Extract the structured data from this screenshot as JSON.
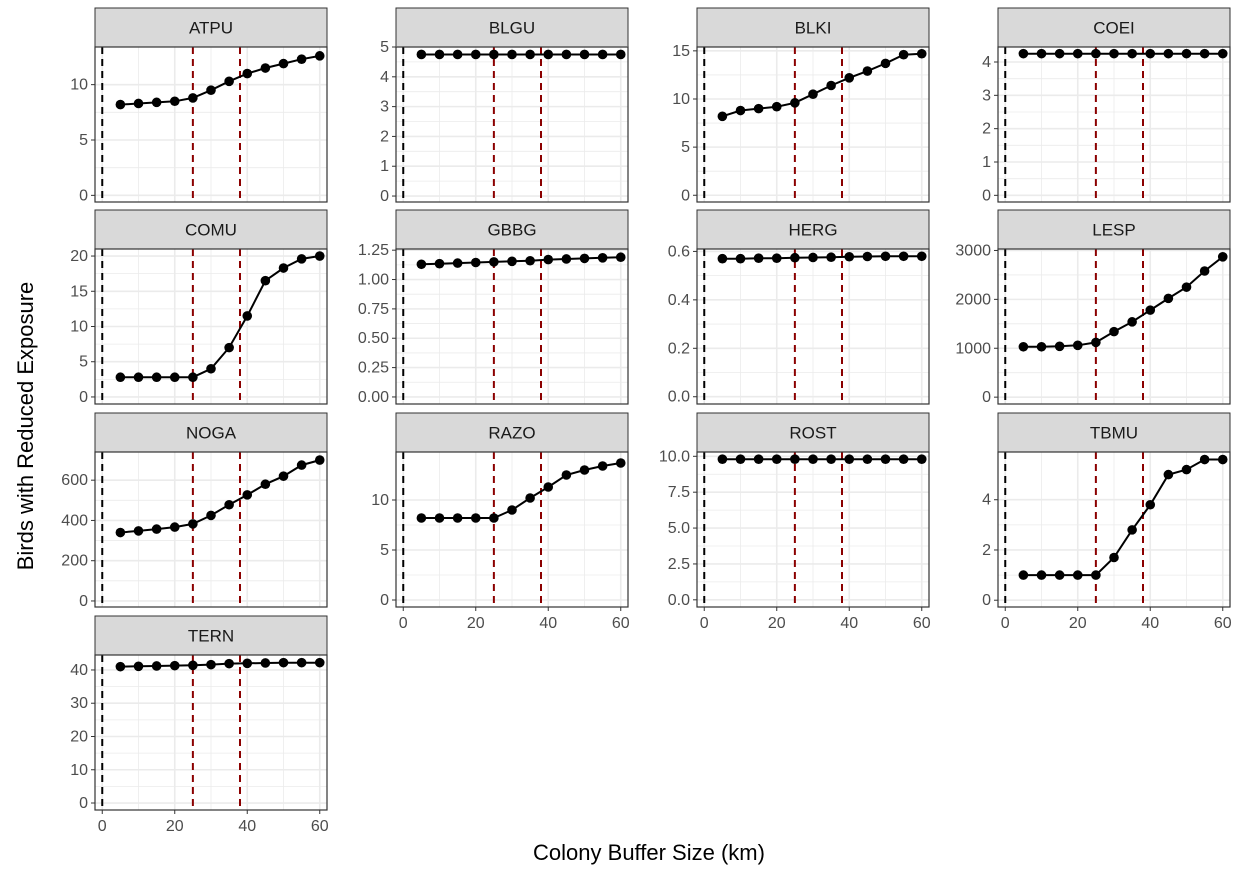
{
  "chart_data": {
    "type": "line",
    "xlabel": "Colony Buffer Size (km)",
    "ylabel": "Birds with Reduced Exposure",
    "x": [
      5,
      10,
      15,
      20,
      25,
      30,
      35,
      40,
      45,
      50,
      55,
      60
    ],
    "xlim": [
      -2,
      62
    ],
    "x_ticks": [
      0,
      20,
      40,
      60
    ],
    "reference_lines": [
      {
        "x": 0,
        "color": "#000000",
        "style": "dashed"
      },
      {
        "x": 25,
        "color": "#8b0000",
        "style": "dashed"
      },
      {
        "x": 38,
        "color": "#8b0000",
        "style": "dashed"
      }
    ],
    "grid": true,
    "colors": {
      "line": "#000000",
      "strip_fill": "#d9d9d9",
      "panel_border": "#333333",
      "grid": "#ebebeb",
      "ref_black": "#000000",
      "ref_red": "#8b0000"
    },
    "panels": [
      {
        "name": "ATPU",
        "ylim": [
          -0.6,
          13.4
        ],
        "y_ticks": [
          0,
          5,
          10
        ],
        "y_tick_labels": [
          "0",
          "5",
          "10"
        ],
        "values": [
          8.2,
          8.3,
          8.4,
          8.5,
          8.8,
          9.5,
          10.3,
          11.0,
          11.5,
          11.9,
          12.3,
          12.6
        ]
      },
      {
        "name": "BLGU",
        "ylim": [
          -0.2,
          5.0
        ],
        "y_ticks": [
          0,
          1,
          2,
          3,
          4,
          5
        ],
        "y_tick_labels": [
          "0",
          "1",
          "2",
          "3",
          "4",
          "5"
        ],
        "values": [
          4.75,
          4.75,
          4.75,
          4.75,
          4.75,
          4.75,
          4.75,
          4.75,
          4.75,
          4.75,
          4.75,
          4.75
        ]
      },
      {
        "name": "BLKI",
        "ylim": [
          -0.7,
          15.4
        ],
        "y_ticks": [
          0,
          5,
          10,
          15
        ],
        "y_tick_labels": [
          "0",
          "5",
          "10",
          "15"
        ],
        "values": [
          8.2,
          8.8,
          9.0,
          9.2,
          9.6,
          10.5,
          11.4,
          12.2,
          12.9,
          13.7,
          14.6,
          14.7
        ]
      },
      {
        "name": "COEI",
        "ylim": [
          -0.2,
          4.45
        ],
        "y_ticks": [
          0,
          1,
          2,
          3,
          4
        ],
        "y_tick_labels": [
          "0",
          "1",
          "2",
          "3",
          "4"
        ],
        "values": [
          4.25,
          4.25,
          4.25,
          4.25,
          4.25,
          4.25,
          4.25,
          4.25,
          4.25,
          4.25,
          4.25,
          4.25
        ]
      },
      {
        "name": "COMU",
        "ylim": [
          -1.0,
          21.0
        ],
        "y_ticks": [
          0,
          5,
          10,
          15,
          20
        ],
        "y_tick_labels": [
          "0",
          "5",
          "10",
          "15",
          "20"
        ],
        "values": [
          2.8,
          2.8,
          2.8,
          2.8,
          2.8,
          4.0,
          7.0,
          11.5,
          16.5,
          18.3,
          19.6,
          20.0
        ]
      },
      {
        "name": "GBBG",
        "ylim": [
          -0.06,
          1.26
        ],
        "y_ticks": [
          0,
          0.25,
          0.5,
          0.75,
          1.0,
          1.25
        ],
        "y_tick_labels": [
          "0.00",
          "0.25",
          "0.50",
          "0.75",
          "1.00",
          "1.25"
        ],
        "values": [
          1.13,
          1.135,
          1.14,
          1.145,
          1.15,
          1.155,
          1.16,
          1.17,
          1.175,
          1.18,
          1.185,
          1.19
        ]
      },
      {
        "name": "HERG",
        "ylim": [
          -0.03,
          0.61
        ],
        "y_ticks": [
          0,
          0.2,
          0.4,
          0.6
        ],
        "y_tick_labels": [
          "0.0",
          "0.2",
          "0.4",
          "0.6"
        ],
        "values": [
          0.57,
          0.57,
          0.572,
          0.572,
          0.574,
          0.575,
          0.576,
          0.578,
          0.579,
          0.58,
          0.58,
          0.58
        ]
      },
      {
        "name": "LESP",
        "ylim": [
          -140,
          3030
        ],
        "y_ticks": [
          0,
          1000,
          2000,
          3000
        ],
        "y_tick_labels": [
          "0",
          "1000",
          "2000",
          "3000"
        ],
        "values": [
          1030,
          1030,
          1040,
          1060,
          1120,
          1340,
          1540,
          1780,
          2020,
          2250,
          2580,
          2870
        ]
      },
      {
        "name": "NOGA",
        "ylim": [
          -30,
          740
        ],
        "y_ticks": [
          0,
          200,
          400,
          600
        ],
        "y_tick_labels": [
          "0",
          "200",
          "400",
          "600"
        ],
        "values": [
          340,
          348,
          357,
          367,
          383,
          425,
          478,
          527,
          580,
          620,
          675,
          700
        ]
      },
      {
        "name": "RAZO",
        "ylim": [
          -0.7,
          14.8
        ],
        "y_ticks": [
          0,
          5,
          10
        ],
        "y_tick_labels": [
          "0",
          "5",
          "10"
        ],
        "values": [
          8.2,
          8.2,
          8.2,
          8.2,
          8.2,
          9.0,
          10.2,
          11.3,
          12.5,
          13.0,
          13.4,
          13.7
        ]
      },
      {
        "name": "ROST",
        "ylim": [
          -0.5,
          10.3
        ],
        "y_ticks": [
          0,
          2.5,
          5,
          7.5,
          10
        ],
        "y_tick_labels": [
          "0.0",
          "2.5",
          "5.0",
          "7.5",
          "10.0"
        ],
        "values": [
          9.8,
          9.8,
          9.8,
          9.8,
          9.8,
          9.8,
          9.8,
          9.8,
          9.8,
          9.8,
          9.8,
          9.8
        ]
      },
      {
        "name": "TBMU",
        "ylim": [
          -0.27,
          5.9
        ],
        "y_ticks": [
          0,
          2,
          4
        ],
        "y_tick_labels": [
          "0",
          "2",
          "4"
        ],
        "values": [
          1.0,
          1.0,
          1.0,
          1.0,
          1.0,
          1.7,
          2.8,
          3.8,
          5.0,
          5.2,
          5.6,
          5.6
        ]
      },
      {
        "name": "TERN",
        "ylim": [
          -2.1,
          44.5
        ],
        "y_ticks": [
          0,
          10,
          20,
          30,
          40
        ],
        "y_tick_labels": [
          "0",
          "10",
          "20",
          "30",
          "40"
        ],
        "values": [
          41.0,
          41.1,
          41.2,
          41.3,
          41.4,
          41.6,
          41.9,
          42.0,
          42.1,
          42.2,
          42.2,
          42.2
        ]
      }
    ]
  }
}
